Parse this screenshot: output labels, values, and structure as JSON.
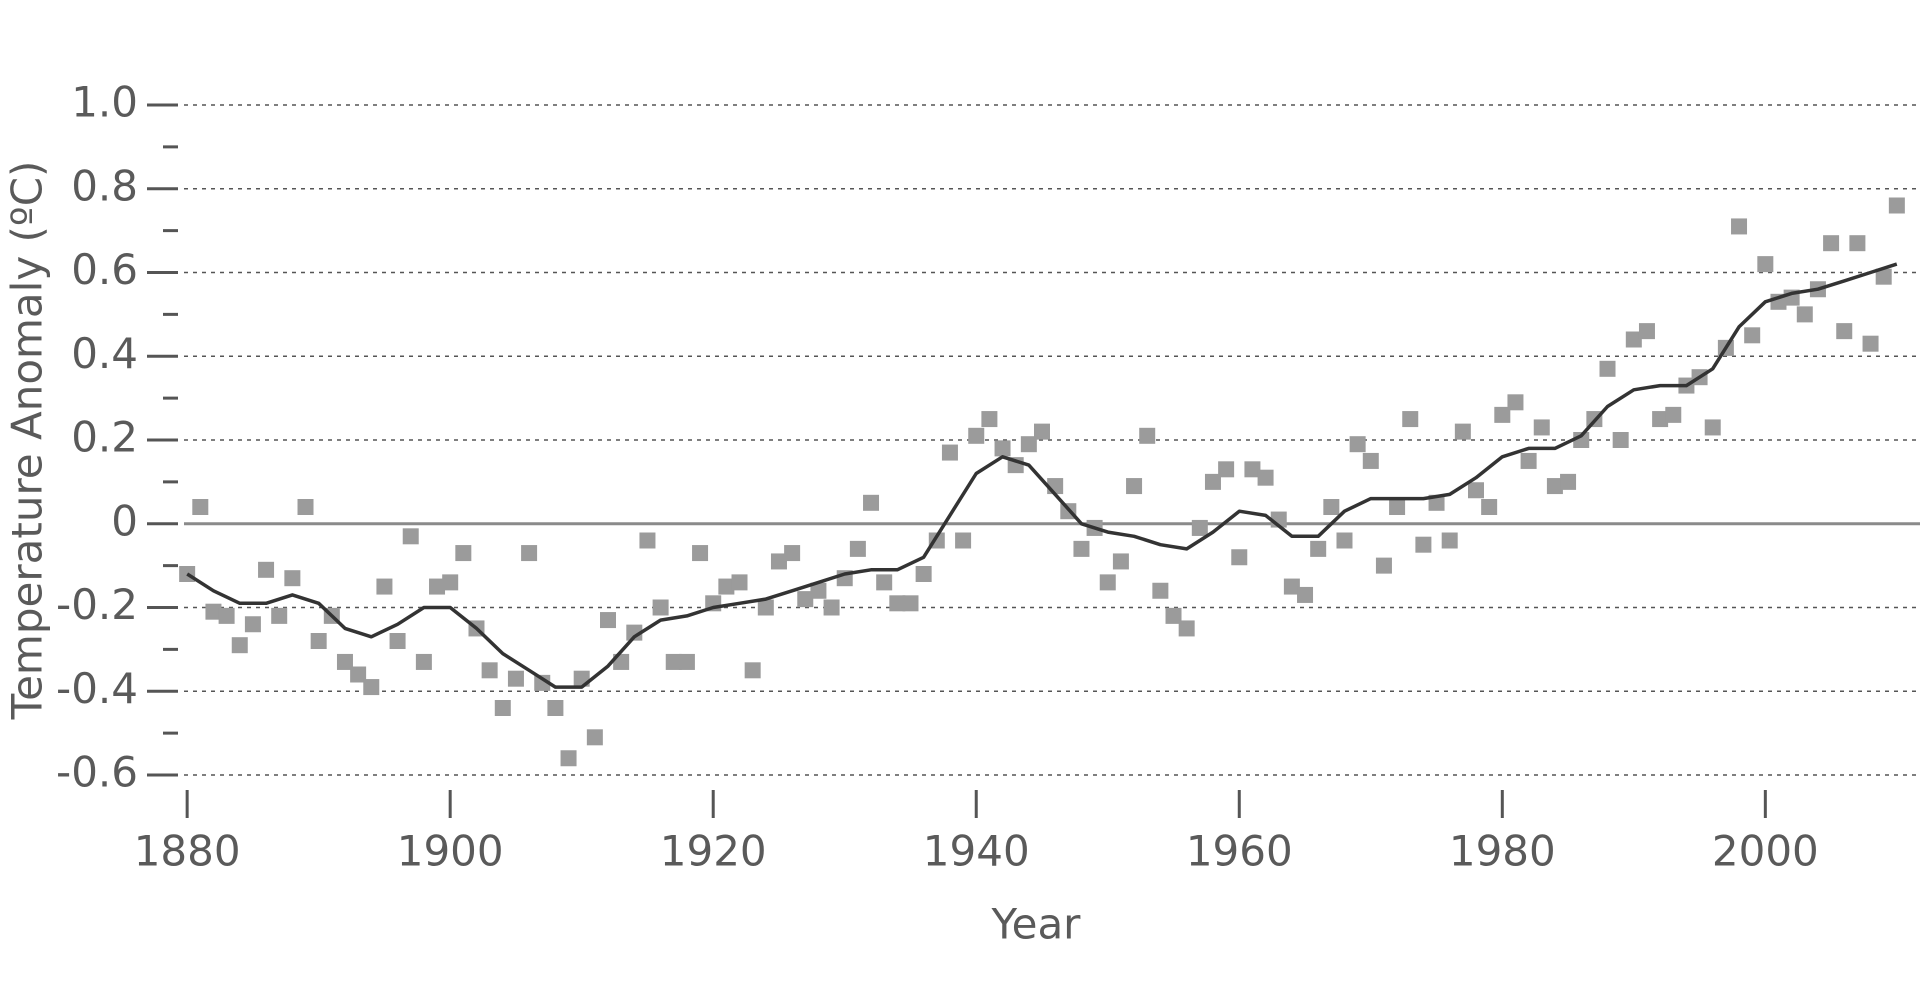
{
  "chart_data": {
    "type": "scatter",
    "x_label": "Year",
    "y_label": "Temperature Anomaly (ºC)",
    "x": [
      1880,
      1881,
      1882,
      1883,
      1884,
      1885,
      1886,
      1887,
      1888,
      1889,
      1890,
      1891,
      1892,
      1893,
      1894,
      1895,
      1896,
      1897,
      1898,
      1899,
      1900,
      1901,
      1902,
      1903,
      1904,
      1905,
      1906,
      1907,
      1908,
      1909,
      1910,
      1911,
      1912,
      1913,
      1914,
      1915,
      1916,
      1917,
      1918,
      1919,
      1920,
      1921,
      1922,
      1923,
      1924,
      1925,
      1926,
      1927,
      1928,
      1929,
      1930,
      1931,
      1932,
      1933,
      1934,
      1935,
      1936,
      1937,
      1938,
      1939,
      1940,
      1941,
      1942,
      1943,
      1944,
      1945,
      1946,
      1947,
      1948,
      1949,
      1950,
      1951,
      1952,
      1953,
      1954,
      1955,
      1956,
      1957,
      1958,
      1959,
      1960,
      1961,
      1962,
      1963,
      1964,
      1965,
      1966,
      1967,
      1968,
      1969,
      1970,
      1971,
      1972,
      1973,
      1974,
      1975,
      1976,
      1977,
      1978,
      1979,
      1980,
      1981,
      1982,
      1983,
      1984,
      1985,
      1986,
      1987,
      1988,
      1989,
      1990,
      1991,
      1992,
      1993,
      1994,
      1995,
      1996,
      1997,
      1998,
      1999,
      2000,
      2001,
      2002,
      2003,
      2004,
      2005,
      2006,
      2007,
      2008,
      2009,
      2010
    ],
    "series": [
      {
        "type": "scatter",
        "color": "#9b9b9b",
        "values": [
          -0.12,
          0.04,
          -0.21,
          -0.22,
          -0.29,
          -0.24,
          -0.11,
          -0.22,
          -0.13,
          0.04,
          -0.28,
          -0.22,
          -0.33,
          -0.36,
          -0.39,
          -0.15,
          -0.28,
          -0.03,
          -0.33,
          -0.15,
          -0.14,
          -0.07,
          -0.25,
          -0.35,
          -0.44,
          -0.37,
          -0.07,
          -0.38,
          -0.44,
          -0.56,
          -0.37,
          -0.51,
          -0.23,
          -0.33,
          -0.26,
          -0.04,
          -0.2,
          -0.33,
          -0.33,
          -0.07,
          -0.19,
          -0.15,
          -0.14,
          -0.35,
          -0.2,
          -0.09,
          -0.07,
          -0.18,
          -0.16,
          -0.2,
          -0.13,
          -0.06,
          0.05,
          -0.14,
          -0.19,
          -0.19,
          -0.12,
          -0.04,
          0.17,
          -0.04,
          0.21,
          0.25,
          0.18,
          0.14,
          0.19,
          0.22,
          0.09,
          0.03,
          -0.06,
          -0.01,
          -0.14,
          -0.09,
          0.09,
          0.21,
          -0.16,
          -0.22,
          -0.25,
          -0.01,
          0.1,
          0.13,
          -0.08,
          0.13,
          0.11,
          0.01,
          -0.15,
          -0.17,
          -0.06,
          0.04,
          -0.04,
          0.19,
          0.15,
          -0.1,
          0.04,
          0.25,
          -0.05,
          0.05,
          -0.04,
          0.22,
          0.08,
          0.04,
          0.26,
          0.29,
          0.15,
          0.23,
          0.09,
          0.1,
          0.2,
          0.25,
          0.37,
          0.2,
          0.44,
          0.46,
          0.25,
          0.26,
          0.33,
          0.35,
          0.23,
          0.42,
          0.71,
          0.45,
          0.62,
          0.53,
          0.54,
          0.5,
          0.56,
          0.67,
          0.46,
          0.67,
          0.43,
          0.59,
          0.76
        ]
      },
      {
        "type": "line",
        "color": "#333333",
        "x": [
          1880,
          1882,
          1884,
          1886,
          1888,
          1890,
          1892,
          1894,
          1896,
          1898,
          1900,
          1902,
          1904,
          1906,
          1908,
          1910,
          1912,
          1914,
          1916,
          1918,
          1920,
          1922,
          1924,
          1926,
          1928,
          1930,
          1932,
          1934,
          1936,
          1938,
          1940,
          1942,
          1944,
          1946,
          1948,
          1950,
          1952,
          1954,
          1956,
          1958,
          1960,
          1962,
          1964,
          1966,
          1968,
          1970,
          1972,
          1974,
          1976,
          1978,
          1980,
          1982,
          1984,
          1986,
          1988,
          1990,
          1992,
          1994,
          1996,
          1998,
          2000,
          2002,
          2004,
          2006,
          2008,
          2010
        ],
        "values": [
          -0.12,
          -0.16,
          -0.19,
          -0.19,
          -0.17,
          -0.19,
          -0.25,
          -0.27,
          -0.24,
          -0.2,
          -0.2,
          -0.25,
          -0.31,
          -0.35,
          -0.39,
          -0.39,
          -0.34,
          -0.27,
          -0.23,
          -0.22,
          -0.2,
          -0.19,
          -0.18,
          -0.16,
          -0.14,
          -0.12,
          -0.11,
          -0.11,
          -0.08,
          0.02,
          0.12,
          0.16,
          0.14,
          0.07,
          0.0,
          -0.02,
          -0.03,
          -0.05,
          -0.06,
          -0.02,
          0.03,
          0.02,
          -0.03,
          -0.03,
          0.03,
          0.06,
          0.06,
          0.06,
          0.07,
          0.11,
          0.16,
          0.18,
          0.18,
          0.21,
          0.28,
          0.32,
          0.33,
          0.33,
          0.37,
          0.47,
          0.53,
          0.55,
          0.56,
          0.58,
          0.6,
          0.62
        ]
      }
    ],
    "xlim": [
      1879,
      2011
    ],
    "xticks": [
      1880,
      1900,
      1920,
      1940,
      1960,
      1980,
      2000
    ],
    "ylim": [
      -0.6,
      1.0
    ],
    "yticks": [
      -0.6,
      -0.4,
      -0.2,
      0,
      0.2,
      0.4,
      0.6,
      0.8,
      {
        "value": 1.0,
        "label": "1.0"
      }
    ],
    "yminor_ticks": [
      -0.5,
      -0.3,
      -0.1,
      0.1,
      0.3,
      0.5,
      0.7,
      0.9
    ],
    "grid": true
  }
}
